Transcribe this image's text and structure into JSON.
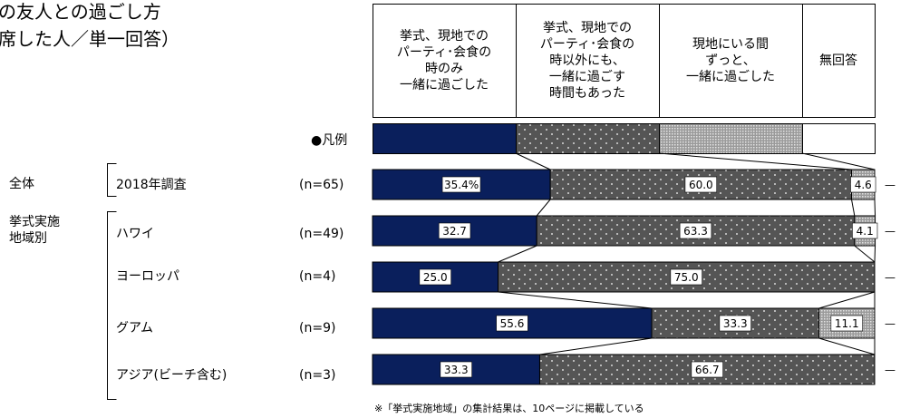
{
  "title": {
    "line1": "の友人との過ごし方",
    "line2": "席した人／単一回答）"
  },
  "legend_label": "●凡例",
  "note": "※「挙式実施地域」の集計結果は、10ページに掲載している",
  "groups": {
    "total": "全体",
    "by_region": "挙式実施\n地域別"
  },
  "chart_data": {
    "type": "bar",
    "stacked": true,
    "orientation": "horizontal",
    "percent_scale": true,
    "categories": [
      "2018年調査",
      "ハワイ",
      "ヨーロッパ",
      "グアム",
      "アジア(ビーチ含む)"
    ],
    "sample_sizes": [
      "(n=65)",
      "(n=49)",
      "(n=4)",
      "(n=9)",
      "(n=3)"
    ],
    "series": [
      {
        "name": "挙式、現地での\nパーティ･会食の\n時のみ\n一緒に過ごした",
        "color": "#0a1f5c",
        "values": [
          35.4,
          32.7,
          25.0,
          55.6,
          33.3
        ],
        "labels": [
          "35.4%",
          "32.7",
          "25.0",
          "55.6",
          "33.3"
        ]
      },
      {
        "name": "挙式、現地での\nパーティ･会食の\n時以外にも、\n一緒に過ごす\n時間もあった",
        "color": "#555555",
        "values": [
          60.0,
          63.3,
          75.0,
          33.3,
          66.7
        ],
        "labels": [
          "60.0",
          "63.3",
          "75.0",
          "33.3",
          "66.7"
        ]
      },
      {
        "name": "現地にいる間\nずっと、\n一緒に過ごした",
        "color": "#b8b8b8",
        "values": [
          4.6,
          4.1,
          0,
          11.1,
          0
        ],
        "labels": [
          "4.6",
          "4.1",
          "",
          "11.1",
          ""
        ]
      },
      {
        "name": "無回答",
        "color": "#ffffff",
        "values": [
          0,
          0,
          0,
          0,
          0
        ],
        "labels": [
          "",
          "",
          "",
          "",
          ""
        ]
      }
    ],
    "right_labels": [
      "—",
      "—",
      "—",
      "—",
      "—"
    ]
  }
}
